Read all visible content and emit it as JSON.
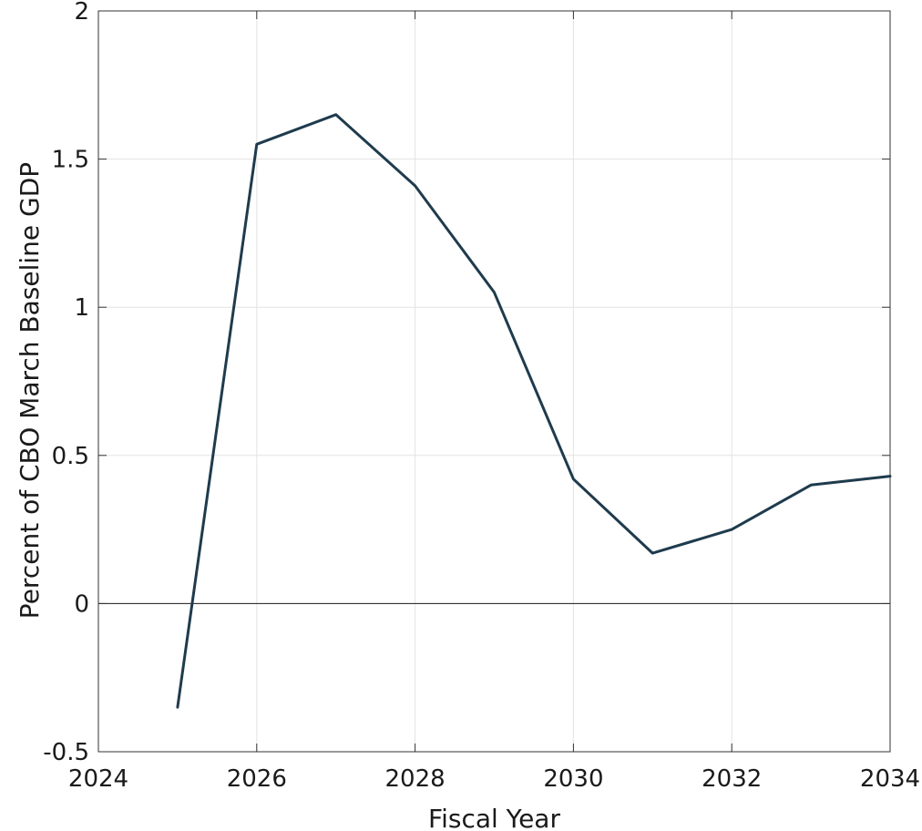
{
  "chart_data": {
    "type": "line",
    "title": "",
    "xlabel": "Fiscal Year",
    "ylabel": "Percent of CBO March Baseline GDP",
    "xlim": [
      2024,
      2034
    ],
    "ylim": [
      -0.5,
      2
    ],
    "x_ticks": [
      2024,
      2026,
      2028,
      2030,
      2032,
      2034
    ],
    "y_ticks": [
      -0.5,
      0,
      0.5,
      1,
      1.5,
      2
    ],
    "y_tick_labels": [
      "-0.5",
      "0",
      "0.5",
      "1",
      "1.5",
      "2"
    ],
    "grid": true,
    "zero_line": true,
    "series": [
      {
        "color": "#1f3b4d",
        "x": [
          2025,
          2026,
          2027,
          2028,
          2029,
          2030,
          2031,
          2032,
          2033,
          2034
        ],
        "values": [
          -0.35,
          1.55,
          1.65,
          1.41,
          1.05,
          0.42,
          0.17,
          0.25,
          0.4,
          0.43
        ]
      }
    ]
  }
}
